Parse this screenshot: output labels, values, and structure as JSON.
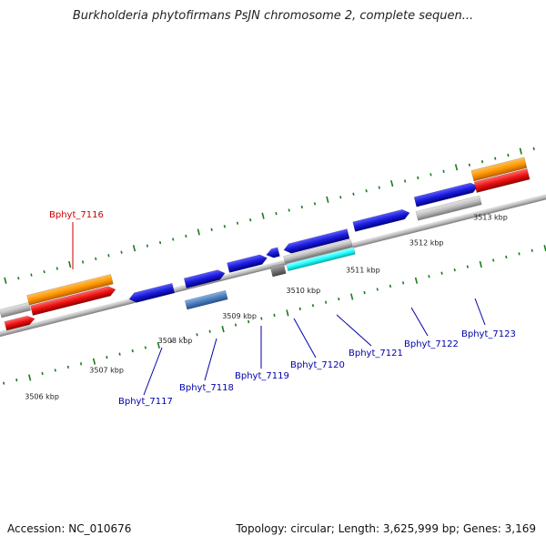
{
  "title": "Burkholderia phytofirmans PsJN chromosome 2, complete sequen...",
  "footer": {
    "accession": "Accession: NC_010676",
    "summary": "Topology: circular; Length: 3,625,999 bp; Genes: 3,169"
  },
  "scale": {
    "ticks_kbp": [
      {
        "value": 3506,
        "label": "3506 kbp"
      },
      {
        "value": 3507,
        "label": "3507 kbp"
      },
      {
        "value": 3508,
        "label": "3508 kbp"
      },
      {
        "value": 3509,
        "label": "3509 kbp"
      },
      {
        "value": 3510,
        "label": "3510 kbp"
      },
      {
        "value": 3511,
        "label": "3511 kbp"
      },
      {
        "value": 3512,
        "label": "3512 kbp"
      },
      {
        "value": 3513,
        "label": "3513 kbp"
      }
    ]
  },
  "gene_labels": [
    {
      "text": "Bphyt_7116",
      "color": "#cc0000",
      "highlight": true
    },
    {
      "text": "Bphyt_7117",
      "color": "#0000aa"
    },
    {
      "text": "Bphyt_7118",
      "color": "#0000aa"
    },
    {
      "text": "Bphyt_7119",
      "color": "#0000aa"
    },
    {
      "text": "Bphyt_7120",
      "color": "#0000aa"
    },
    {
      "text": "Bphyt_7121",
      "color": "#0000aa"
    },
    {
      "text": "Bphyt_7122",
      "color": "#0000aa"
    },
    {
      "text": "Bphyt_7123",
      "color": "#0000aa"
    }
  ],
  "colors": {
    "gene_forward": "#1a1adb",
    "selected_gene": "#ee1111",
    "orange_feature": "#ff9900",
    "gray_feature": "#bbbbbb",
    "cyan_feature": "#22ffff",
    "steelblue_feature": "#4b7fbf",
    "tick_green": "#1a7a1a",
    "backbone": "#888888"
  }
}
